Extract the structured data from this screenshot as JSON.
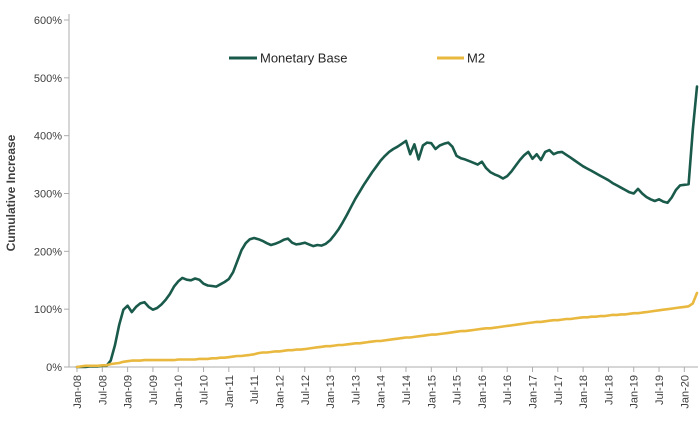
{
  "chart_data": {
    "type": "line",
    "title": "",
    "ylabel": "Cumulative Increase",
    "xlabel": "",
    "ylim": [
      0,
      600
    ],
    "grid": false,
    "legend_position": "top-center",
    "y_ticks": [
      {
        "value": 0,
        "label": "0%"
      },
      {
        "value": 100,
        "label": "100%"
      },
      {
        "value": 200,
        "label": "200%"
      },
      {
        "value": 300,
        "label": "300%"
      },
      {
        "value": 400,
        "label": "400%"
      },
      {
        "value": 500,
        "label": "500%"
      },
      {
        "value": 600,
        "label": "600%"
      }
    ],
    "x_ticks": [
      {
        "month": 0,
        "label": "Jan-08"
      },
      {
        "month": 6,
        "label": "Jul-08"
      },
      {
        "month": 12,
        "label": "Jan-09"
      },
      {
        "month": 18,
        "label": "Jul-09"
      },
      {
        "month": 24,
        "label": "Jan-10"
      },
      {
        "month": 30,
        "label": "Jul-10"
      },
      {
        "month": 36,
        "label": "Jan-11"
      },
      {
        "month": 42,
        "label": "Jul-11"
      },
      {
        "month": 48,
        "label": "Jan-12"
      },
      {
        "month": 54,
        "label": "Jul-12"
      },
      {
        "month": 60,
        "label": "Jan-13"
      },
      {
        "month": 66,
        "label": "Jul-13"
      },
      {
        "month": 72,
        "label": "Jan-14"
      },
      {
        "month": 78,
        "label": "Jul-14"
      },
      {
        "month": 84,
        "label": "Jan-15"
      },
      {
        "month": 90,
        "label": "Jul-15"
      },
      {
        "month": 96,
        "label": "Jan-16"
      },
      {
        "month": 102,
        "label": "Jul-16"
      },
      {
        "month": 108,
        "label": "Jan-17"
      },
      {
        "month": 114,
        "label": "Jul-17"
      },
      {
        "month": 120,
        "label": "Jan-18"
      },
      {
        "month": 126,
        "label": "Jul-18"
      },
      {
        "month": 132,
        "label": "Jan-19"
      },
      {
        "month": 138,
        "label": "Jul-19"
      },
      {
        "month": 144,
        "label": "Jan-20"
      }
    ],
    "x_unit": "months since Jan-08, monthly points",
    "series": [
      {
        "name": "Monetary Base",
        "color": "#1A5A4B",
        "values": [
          0,
          0,
          0,
          1,
          1,
          1,
          2,
          2,
          11,
          38,
          73,
          99,
          106,
          95,
          104,
          110,
          112,
          104,
          99,
          102,
          108,
          116,
          126,
          139,
          148,
          154,
          151,
          150,
          153,
          151,
          144,
          141,
          140,
          139,
          143,
          147,
          152,
          164,
          183,
          202,
          214,
          221,
          223,
          221,
          218,
          214,
          211,
          213,
          216,
          220,
          222,
          215,
          212,
          213,
          215,
          212,
          209,
          211,
          210,
          213,
          219,
          228,
          238,
          250,
          263,
          277,
          291,
          303,
          315,
          326,
          337,
          347,
          357,
          365,
          372,
          377,
          381,
          386,
          391,
          368,
          385,
          359,
          383,
          388,
          387,
          377,
          383,
          386,
          388,
          381,
          365,
          361,
          359,
          356,
          353,
          350,
          355,
          344,
          337,
          333,
          330,
          326,
          330,
          338,
          348,
          358,
          366,
          372,
          360,
          368,
          358,
          372,
          375,
          368,
          371,
          372,
          367,
          362,
          357,
          352,
          347,
          343,
          339,
          335,
          331,
          327,
          323,
          318,
          314,
          310,
          306,
          302,
          300,
          308,
          300,
          294,
          290,
          287,
          290,
          286,
          284,
          293,
          306,
          314,
          315,
          316,
          410,
          485
        ]
      },
      {
        "name": "M2",
        "color": "#E9B83E",
        "values": [
          0,
          1,
          2,
          2,
          2,
          2,
          3,
          3,
          5,
          6,
          7,
          9,
          10,
          11,
          11,
          11,
          12,
          12,
          12,
          12,
          12,
          12,
          12,
          12,
          13,
          13,
          13,
          13,
          13,
          14,
          14,
          14,
          15,
          15,
          16,
          16,
          17,
          18,
          19,
          19,
          20,
          21,
          22,
          24,
          25,
          25,
          26,
          27,
          27,
          28,
          29,
          29,
          30,
          30,
          31,
          32,
          33,
          34,
          35,
          36,
          36,
          37,
          38,
          38,
          39,
          40,
          41,
          41,
          42,
          43,
          44,
          45,
          45,
          46,
          47,
          48,
          49,
          50,
          51,
          51,
          52,
          53,
          54,
          55,
          56,
          56,
          57,
          58,
          59,
          60,
          61,
          62,
          62,
          63,
          64,
          65,
          66,
          67,
          67,
          68,
          69,
          70,
          71,
          72,
          73,
          74,
          75,
          76,
          77,
          78,
          78,
          79,
          80,
          81,
          81,
          82,
          83,
          83,
          84,
          85,
          86,
          86,
          87,
          87,
          88,
          88,
          89,
          90,
          90,
          91,
          91,
          92,
          93,
          93,
          94,
          95,
          96,
          97,
          98,
          99,
          100,
          101,
          102,
          103,
          104,
          105,
          110,
          128
        ]
      }
    ],
    "legend": [
      {
        "name": "Monetary Base",
        "color": "#1A5A4B"
      },
      {
        "name": "M2",
        "color": "#E9B83E"
      }
    ]
  },
  "colors": {
    "background": "#FFFFFF",
    "axis": "#ADADAD",
    "tick_text": "#404040",
    "legend_text": "#262626",
    "monetary_base": "#1A5A4B",
    "m2": "#E9B83E"
  }
}
